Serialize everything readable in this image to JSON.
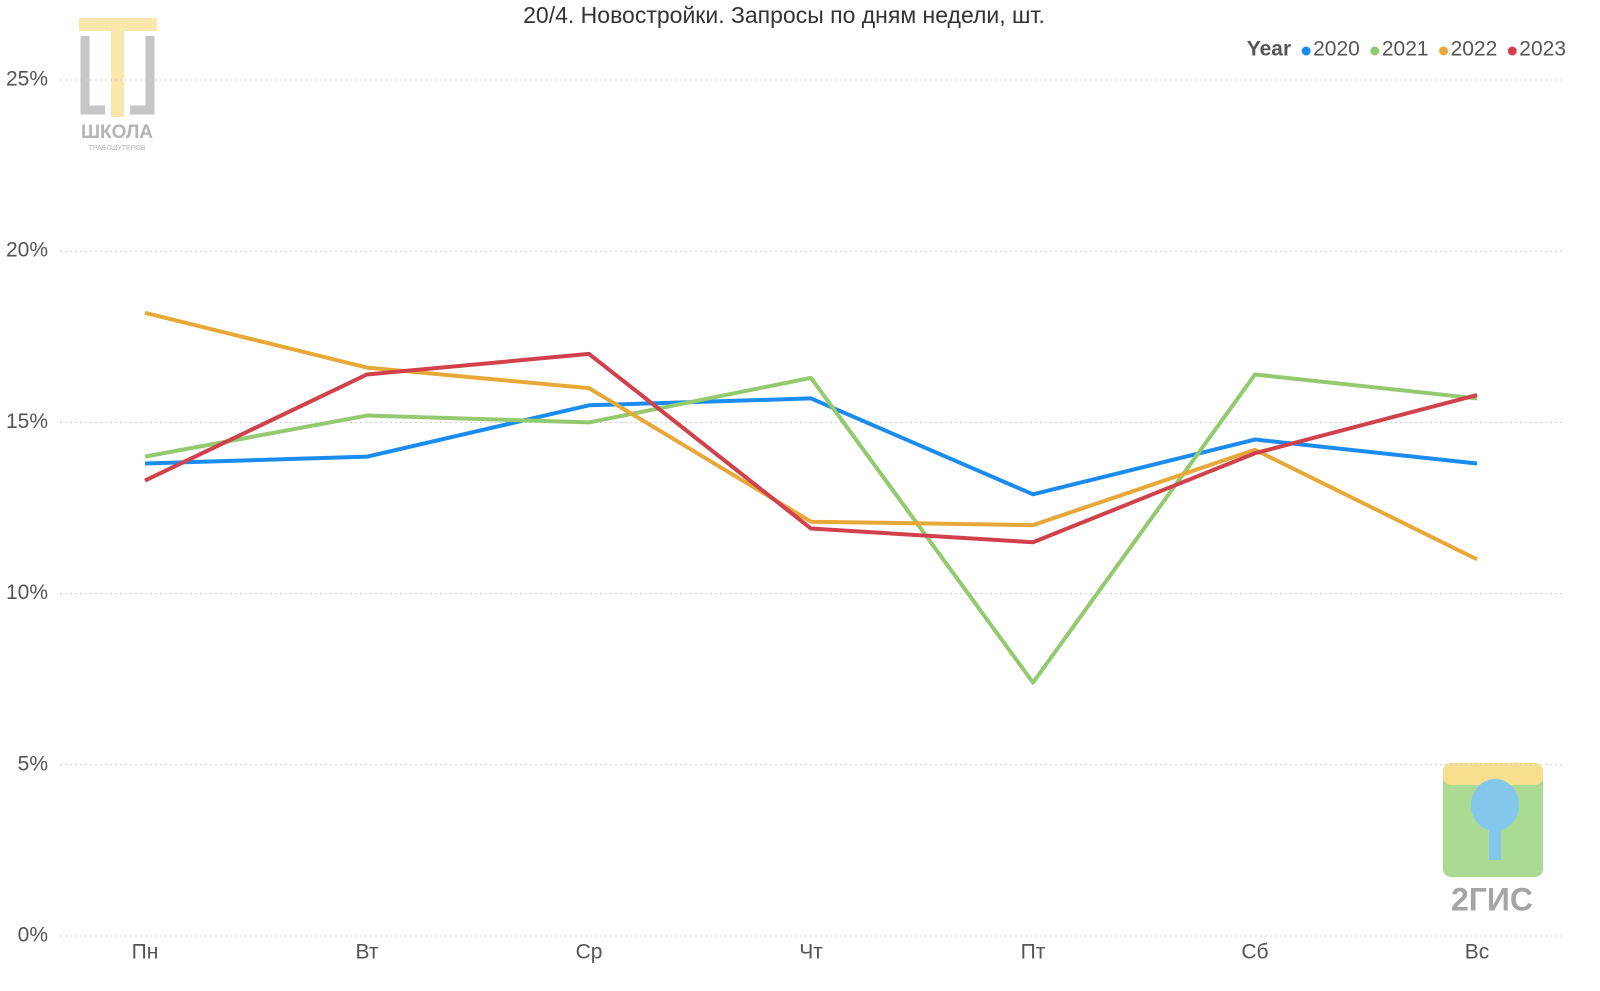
{
  "chart_data": {
    "type": "line",
    "title": "20/4. Новостройки. Запросы по дням недели, шт.",
    "legend_title": "Year",
    "legend_position": "top-right",
    "grid": true,
    "categories": [
      "Пн",
      "Вт",
      "Ср",
      "Чт",
      "Пт",
      "Сб",
      "Вс"
    ],
    "ylim": [
      0,
      25
    ],
    "yticks": [
      {
        "value": 0,
        "label": "0%"
      },
      {
        "value": 5,
        "label": "5%"
      },
      {
        "value": 10,
        "label": "10%"
      },
      {
        "value": 15,
        "label": "15%"
      },
      {
        "value": 20,
        "label": "20%"
      },
      {
        "value": 25,
        "label": "25%"
      }
    ],
    "series": [
      {
        "name": "2020",
        "color": "#1a8cf0",
        "values": [
          13.8,
          14.0,
          15.5,
          15.7,
          12.9,
          14.5,
          13.8
        ]
      },
      {
        "name": "2021",
        "color": "#93c96f",
        "values": [
          14.0,
          15.2,
          15.0,
          16.3,
          7.4,
          16.4,
          15.7
        ]
      },
      {
        "name": "2022",
        "color": "#e8a838",
        "values": [
          18.2,
          16.6,
          16.0,
          12.1,
          12.0,
          14.2,
          11.0
        ]
      },
      {
        "name": "2023",
        "color": "#d0414c",
        "values": [
          13.3,
          16.4,
          17.0,
          11.9,
          11.5,
          14.1,
          15.8
        ]
      }
    ]
  },
  "logos": {
    "school": "ШКОЛА",
    "school_sub": "ТРАБЛШУТЕРОВ",
    "gis": "2ГИС"
  }
}
